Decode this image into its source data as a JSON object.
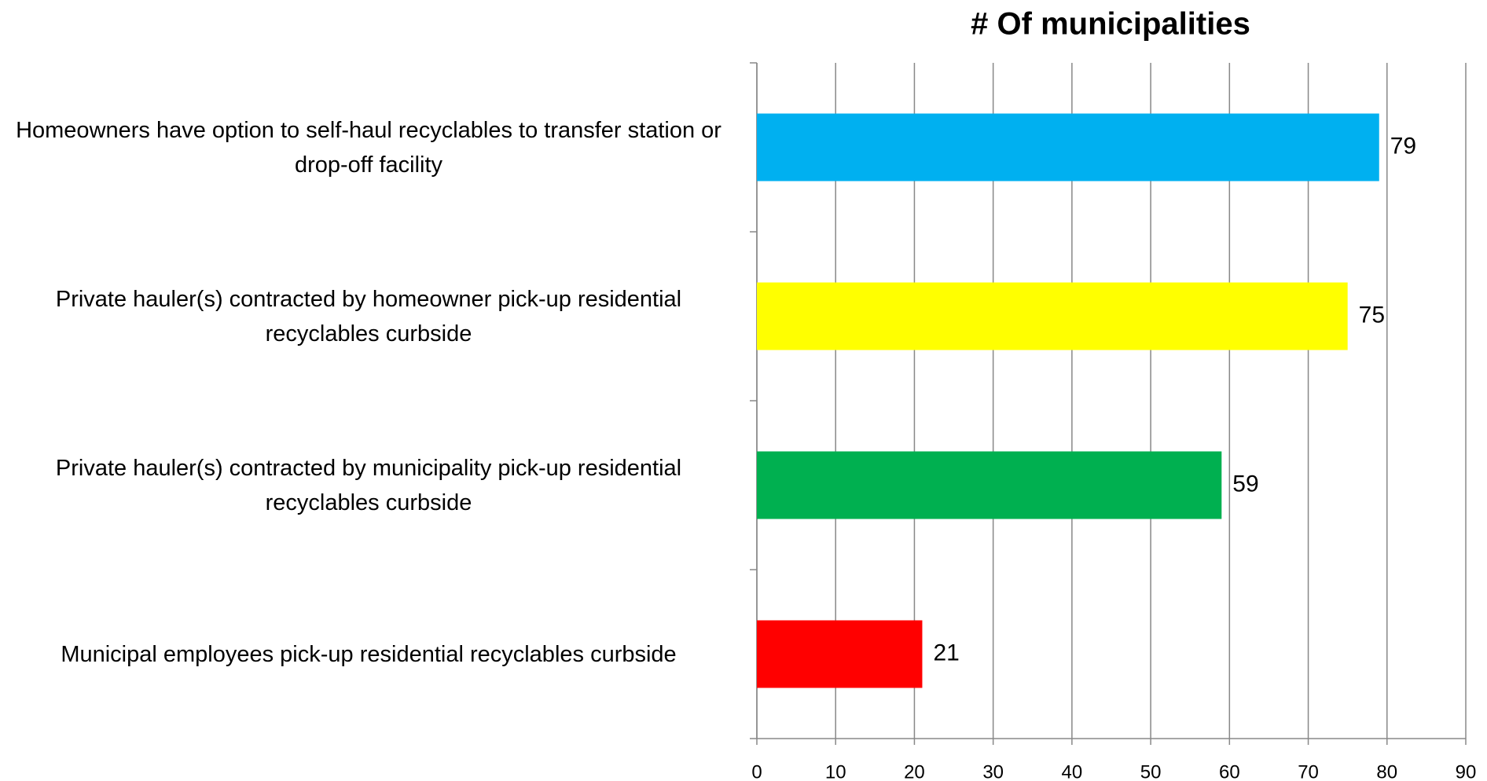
{
  "chart_data": {
    "type": "bar",
    "orientation": "horizontal",
    "title": "# Of municipalities",
    "categories": [
      "Homeowners have option to self-haul recyclables to transfer station or drop-off facility",
      "Private hauler(s) contracted by homeowner pick-up residential recyclables curbside",
      "Private hauler(s) contracted by municipality pick-up residential recyclables curbside",
      "Municipal employees pick-up residential recyclables curbside"
    ],
    "values": [
      79,
      75,
      59,
      21
    ],
    "colors": [
      "#00b0f0",
      "#ffff00",
      "#00b050",
      "#ff0000"
    ],
    "xlim": [
      0,
      90
    ],
    "xticks": [
      0,
      10,
      20,
      30,
      40,
      50,
      60,
      70,
      80,
      90
    ],
    "grid": true
  }
}
